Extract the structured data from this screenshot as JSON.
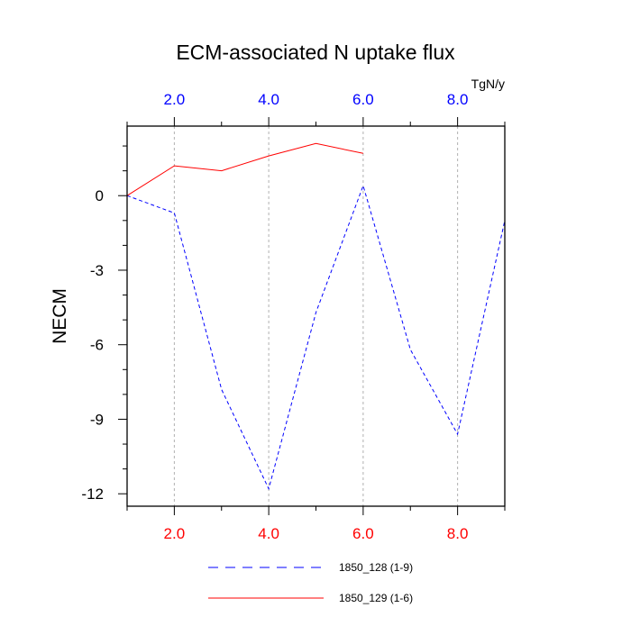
{
  "chart_data": {
    "type": "line",
    "title": "ECM-associated N uptake flux",
    "ylabel": "NECM",
    "units": "TgN/y",
    "xlim": [
      1,
      9
    ],
    "ylim": [
      -12.5,
      2.8
    ],
    "x_ticks": [
      "2.0",
      "4.0",
      "6.0",
      "8.0"
    ],
    "x_tick_values": [
      2,
      4,
      6,
      8
    ],
    "y_ticks": [
      "0",
      "-3",
      "-6",
      "-9",
      "-12"
    ],
    "y_tick_values": [
      0,
      -3,
      -6,
      -9,
      -12
    ],
    "grid": "vertical dashed at major x ticks",
    "legend_position": "bottom",
    "series": [
      {
        "name": "1850_128 (1-9)",
        "color": "#0000ff",
        "style": "dashed",
        "x": [
          1,
          2,
          3,
          4,
          5,
          6,
          7,
          8,
          9
        ],
        "y": [
          0.0,
          -0.7,
          -7.8,
          -11.8,
          -4.7,
          0.4,
          -6.2,
          -9.6,
          -1.0
        ]
      },
      {
        "name": "1850_129 (1-6)",
        "color": "#ff0000",
        "style": "solid",
        "x": [
          1,
          2,
          3,
          4,
          5,
          6
        ],
        "y": [
          0.0,
          1.2,
          1.0,
          1.6,
          2.1,
          1.7
        ]
      }
    ],
    "colors": {
      "top_axis_labels": "#0000ff",
      "bottom_axis_labels": "#ff0000",
      "text": "#000000"
    }
  }
}
